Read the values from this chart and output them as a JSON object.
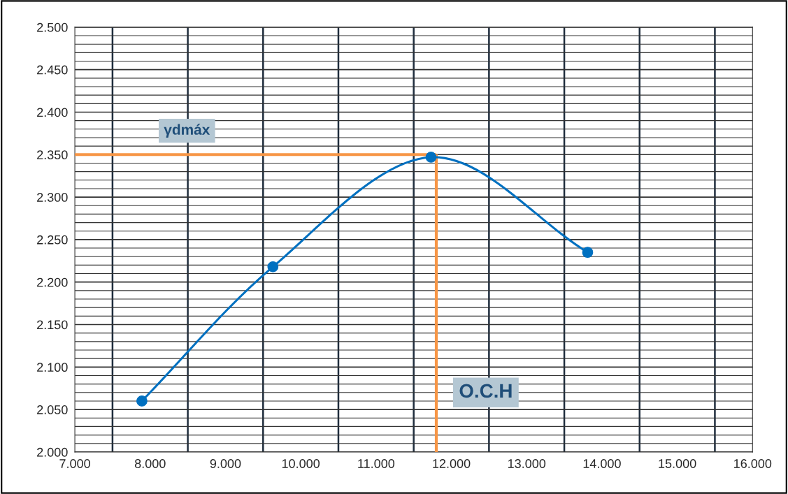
{
  "chart_data": {
    "type": "line",
    "x": [
      7.89,
      9.63,
      11.73,
      13.81
    ],
    "series": [
      {
        "color": "#0070c0",
        "values": [
          2.06,
          2.218,
          2.347,
          2.235
        ]
      }
    ],
    "marker": "circle",
    "line_style": "solid",
    "grid": true,
    "xlim": [
      7,
      16
    ],
    "ylim": [
      2.0,
      2.5
    ],
    "xticks": [
      {
        "value": 7,
        "label": "7.000"
      },
      {
        "value": 8,
        "label": "8.000"
      },
      {
        "value": 9,
        "label": "9.000"
      },
      {
        "value": 10,
        "label": "10.000"
      },
      {
        "value": 11,
        "label": "11.000"
      },
      {
        "value": 12,
        "label": "12.000"
      },
      {
        "value": 13,
        "label": "13.000"
      },
      {
        "value": 14,
        "label": "14.000"
      },
      {
        "value": 15,
        "label": "15.000"
      },
      {
        "value": 16,
        "label": "16.000"
      }
    ],
    "yticks": [
      {
        "value": 2.0,
        "label": "2.000"
      },
      {
        "value": 2.05,
        "label": "2.050"
      },
      {
        "value": 2.1,
        "label": "2.100"
      },
      {
        "value": 2.15,
        "label": "2.150"
      },
      {
        "value": 2.2,
        "label": "2.200"
      },
      {
        "value": 2.25,
        "label": "2.250"
      },
      {
        "value": 2.3,
        "label": "2.300"
      },
      {
        "value": 2.35,
        "label": "2.350"
      },
      {
        "value": 2.4,
        "label": "2.400"
      },
      {
        "value": 2.45,
        "label": "2.450"
      },
      {
        "value": 2.5,
        "label": "2.500"
      }
    ],
    "ref_lines": [
      {
        "axis": "y",
        "value": 2.35,
        "label": "γdmáx",
        "color": "#f79646"
      },
      {
        "axis": "x",
        "value": 11.8,
        "label": "O.C.H",
        "color": "#f79646"
      }
    ]
  }
}
